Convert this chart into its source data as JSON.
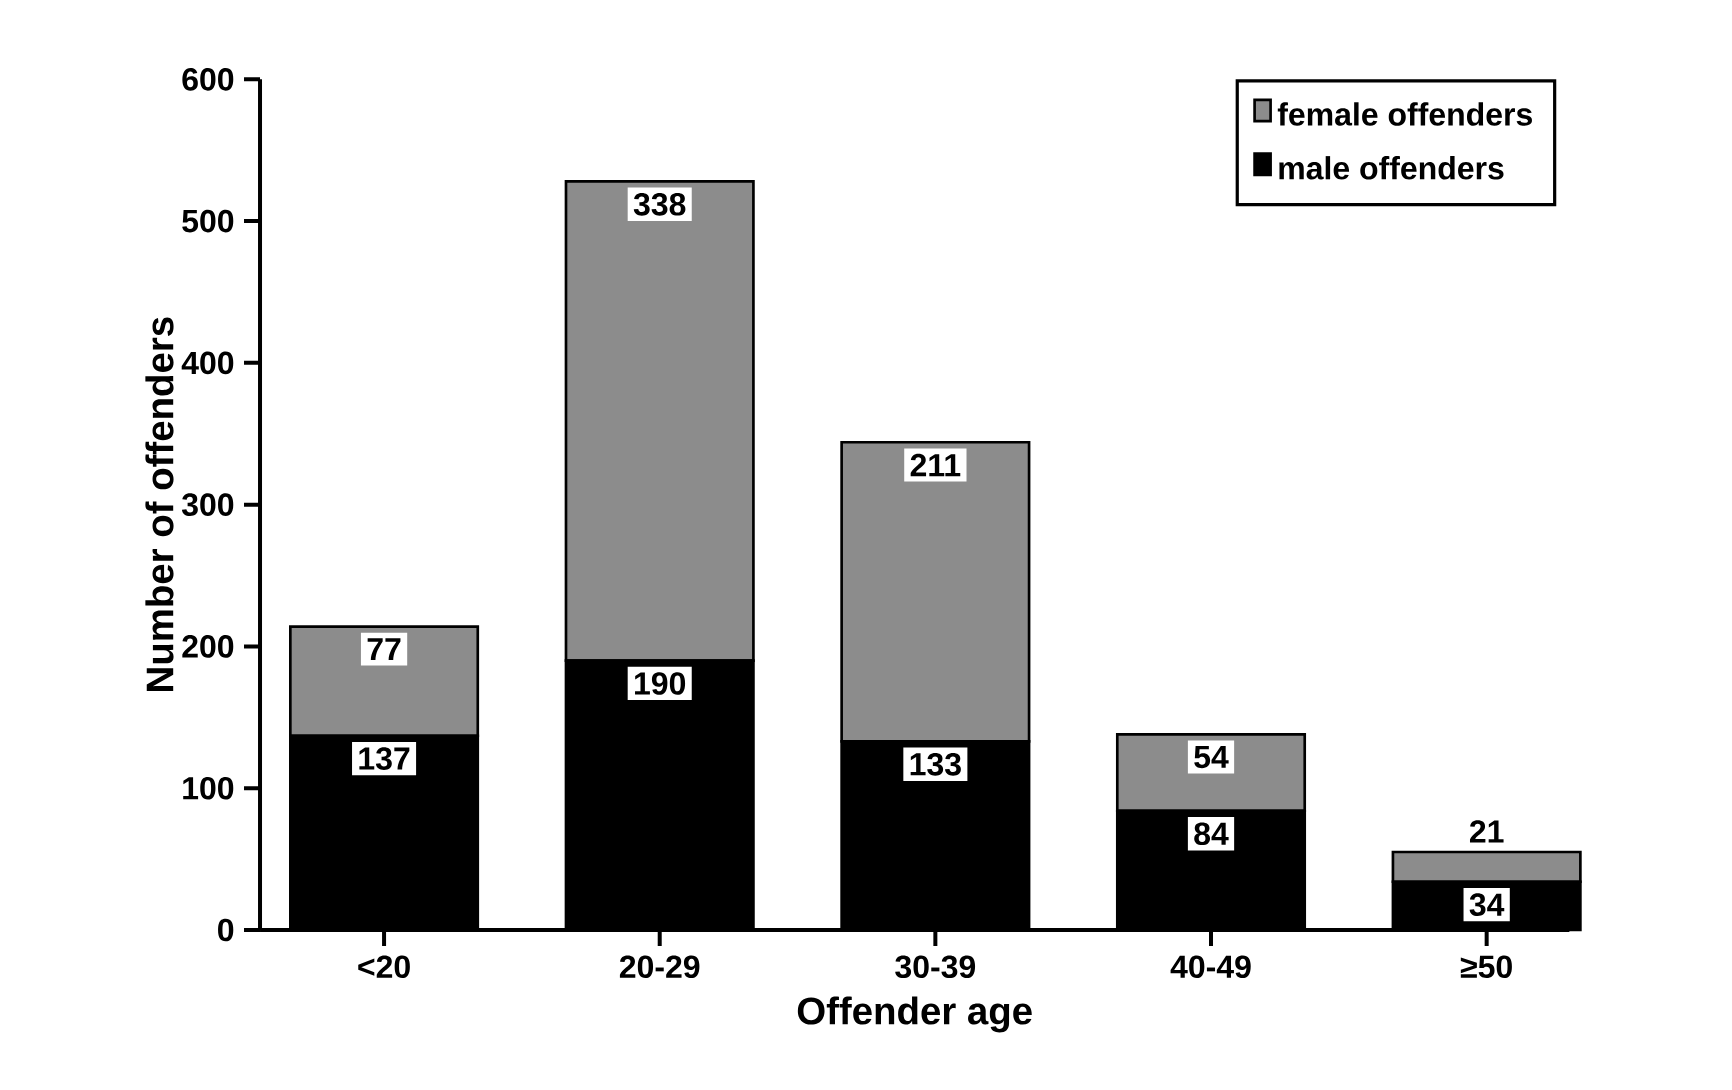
{
  "chart_data": {
    "type": "bar",
    "stacked": true,
    "xlabel": "Offender age",
    "ylabel": "Number of offenders",
    "categories": [
      "<20",
      "20-29",
      "30-39",
      "40-49",
      "≥50"
    ],
    "series": [
      {
        "name": "male offenders",
        "color": "#000000",
        "values": [
          137,
          190,
          133,
          84,
          34
        ]
      },
      {
        "name": "female offenders",
        "color": "#8c8c8c",
        "values": [
          77,
          338,
          211,
          54,
          21
        ]
      }
    ],
    "ylim": [
      0,
      600
    ],
    "yticks": [
      0,
      100,
      200,
      300,
      400,
      500,
      600
    ],
    "data_labels": true,
    "legend": "top right"
  }
}
